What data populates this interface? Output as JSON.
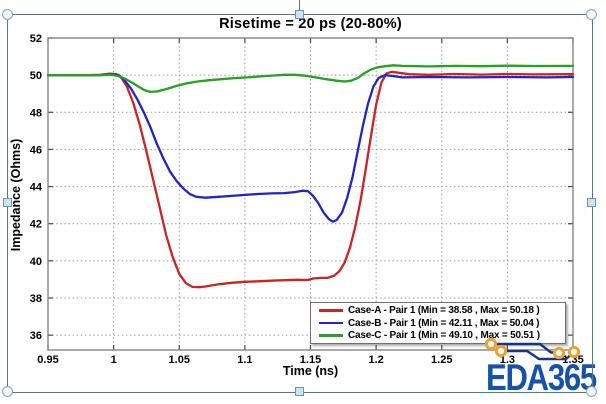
{
  "chart_data": {
    "type": "line",
    "title": "Risetime = 20 ps (20-80%)",
    "xlabel": "Time (ns)",
    "ylabel": "Impedance (Ohms)",
    "xlim": [
      0.95,
      1.35
    ],
    "ylim": [
      35.2,
      52
    ],
    "x_ticks": [
      0.95,
      1.0,
      1.05,
      1.1,
      1.15,
      1.2,
      1.25,
      1.3,
      1.35
    ],
    "x_tick_labels": [
      "0.95",
      "1",
      "1.05",
      "1.1",
      "1.15",
      "1.2",
      "1.25",
      "1.3",
      "1.35"
    ],
    "y_ticks": [
      36,
      38,
      40,
      42,
      44,
      46,
      48,
      50,
      52
    ],
    "y_tick_labels": [
      "36",
      "38",
      "40",
      "42",
      "44",
      "46",
      "48",
      "50",
      "52"
    ],
    "grid": "dotted",
    "legend_position": "inside lower right",
    "series": [
      {
        "name": "Case-A",
        "label": "Case-A - Pair 1 (Min = 38.58 , Max = 50.18 )",
        "color": "#cc2323",
        "min": 38.58,
        "max": 50.18,
        "points": [
          [
            0.95,
            50.0
          ],
          [
            0.96,
            50.0
          ],
          [
            0.97,
            50.0
          ],
          [
            0.98,
            50.0
          ],
          [
            0.99,
            50.02
          ],
          [
            0.997,
            50.08
          ],
          [
            1.002,
            50.05
          ],
          [
            1.006,
            49.85
          ],
          [
            1.01,
            49.4
          ],
          [
            1.015,
            48.5
          ],
          [
            1.02,
            47.3
          ],
          [
            1.025,
            45.9
          ],
          [
            1.03,
            44.4
          ],
          [
            1.035,
            42.9
          ],
          [
            1.04,
            41.4
          ],
          [
            1.045,
            40.2
          ],
          [
            1.05,
            39.3
          ],
          [
            1.055,
            38.8
          ],
          [
            1.06,
            38.6
          ],
          [
            1.065,
            38.58
          ],
          [
            1.07,
            38.62
          ],
          [
            1.075,
            38.68
          ],
          [
            1.08,
            38.74
          ],
          [
            1.09,
            38.82
          ],
          [
            1.1,
            38.87
          ],
          [
            1.11,
            38.9
          ],
          [
            1.12,
            38.93
          ],
          [
            1.13,
            38.96
          ],
          [
            1.14,
            38.98
          ],
          [
            1.148,
            38.97
          ],
          [
            1.152,
            39.05
          ],
          [
            1.158,
            39.08
          ],
          [
            1.163,
            39.08
          ],
          [
            1.168,
            39.2
          ],
          [
            1.172,
            39.45
          ],
          [
            1.176,
            39.9
          ],
          [
            1.18,
            40.7
          ],
          [
            1.184,
            41.8
          ],
          [
            1.188,
            43.2
          ],
          [
            1.192,
            44.9
          ],
          [
            1.196,
            46.7
          ],
          [
            1.2,
            48.4
          ],
          [
            1.204,
            49.6
          ],
          [
            1.208,
            50.1
          ],
          [
            1.212,
            50.18
          ],
          [
            1.218,
            50.12
          ],
          [
            1.225,
            50.05
          ],
          [
            1.24,
            50.02
          ],
          [
            1.26,
            50.06
          ],
          [
            1.28,
            50.03
          ],
          [
            1.3,
            50.06
          ],
          [
            1.32,
            50.04
          ],
          [
            1.35,
            50.05
          ]
        ]
      },
      {
        "name": "Case-B",
        "label": "Case-B - Pair 1 (Min = 42.11 , Max = 50.04 )",
        "color": "#2323cc",
        "min": 42.11,
        "max": 50.04,
        "points": [
          [
            0.95,
            50.0
          ],
          [
            0.97,
            50.0
          ],
          [
            0.99,
            50.0
          ],
          [
            0.998,
            50.04
          ],
          [
            1.004,
            50.0
          ],
          [
            1.008,
            49.75
          ],
          [
            1.013,
            49.3
          ],
          [
            1.018,
            48.7
          ],
          [
            1.023,
            48.0
          ],
          [
            1.028,
            47.2
          ],
          [
            1.033,
            46.3
          ],
          [
            1.038,
            45.5
          ],
          [
            1.043,
            44.8
          ],
          [
            1.048,
            44.3
          ],
          [
            1.053,
            43.9
          ],
          [
            1.058,
            43.6
          ],
          [
            1.063,
            43.45
          ],
          [
            1.07,
            43.4
          ],
          [
            1.08,
            43.45
          ],
          [
            1.09,
            43.5
          ],
          [
            1.1,
            43.55
          ],
          [
            1.11,
            43.6
          ],
          [
            1.12,
            43.63
          ],
          [
            1.13,
            43.65
          ],
          [
            1.138,
            43.7
          ],
          [
            1.144,
            43.78
          ],
          [
            1.148,
            43.75
          ],
          [
            1.152,
            43.5
          ],
          [
            1.156,
            43.1
          ],
          [
            1.16,
            42.6
          ],
          [
            1.164,
            42.25
          ],
          [
            1.167,
            42.11
          ],
          [
            1.17,
            42.2
          ],
          [
            1.174,
            42.6
          ],
          [
            1.178,
            43.4
          ],
          [
            1.182,
            44.5
          ],
          [
            1.186,
            45.9
          ],
          [
            1.19,
            47.3
          ],
          [
            1.194,
            48.5
          ],
          [
            1.198,
            49.4
          ],
          [
            1.202,
            49.85
          ],
          [
            1.207,
            50.0
          ],
          [
            1.213,
            49.95
          ],
          [
            1.22,
            49.88
          ],
          [
            1.24,
            49.9
          ],
          [
            1.27,
            49.88
          ],
          [
            1.3,
            49.9
          ],
          [
            1.33,
            49.88
          ],
          [
            1.35,
            49.9
          ]
        ]
      },
      {
        "name": "Case-C",
        "label": "Case-C - Pair 1 (Min = 49.10 , Max = 50.51 )",
        "color": "#23a223",
        "min": 49.1,
        "max": 50.51,
        "points": [
          [
            0.95,
            50.0
          ],
          [
            0.97,
            50.0
          ],
          [
            0.99,
            50.0
          ],
          [
            0.998,
            50.02
          ],
          [
            1.004,
            49.95
          ],
          [
            1.009,
            49.8
          ],
          [
            1.014,
            49.6
          ],
          [
            1.019,
            49.38
          ],
          [
            1.024,
            49.18
          ],
          [
            1.028,
            49.1
          ],
          [
            1.033,
            49.12
          ],
          [
            1.04,
            49.25
          ],
          [
            1.048,
            49.42
          ],
          [
            1.056,
            49.56
          ],
          [
            1.064,
            49.66
          ],
          [
            1.072,
            49.72
          ],
          [
            1.082,
            49.78
          ],
          [
            1.092,
            49.84
          ],
          [
            1.102,
            49.88
          ],
          [
            1.112,
            49.93
          ],
          [
            1.122,
            49.98
          ],
          [
            1.13,
            50.02
          ],
          [
            1.138,
            50.02
          ],
          [
            1.146,
            49.97
          ],
          [
            1.154,
            49.88
          ],
          [
            1.162,
            49.78
          ],
          [
            1.17,
            49.7
          ],
          [
            1.176,
            49.66
          ],
          [
            1.181,
            49.7
          ],
          [
            1.186,
            49.85
          ],
          [
            1.191,
            50.1
          ],
          [
            1.196,
            50.3
          ],
          [
            1.201,
            50.42
          ],
          [
            1.207,
            50.48
          ],
          [
            1.213,
            50.53
          ],
          [
            1.22,
            50.5
          ],
          [
            1.24,
            50.47
          ],
          [
            1.26,
            50.5
          ],
          [
            1.28,
            50.48
          ],
          [
            1.3,
            50.51
          ],
          [
            1.32,
            50.49
          ],
          [
            1.35,
            50.5
          ]
        ]
      }
    ]
  },
  "logo": {
    "text": "EDA365",
    "text_color": "#1553a8",
    "trace_color": "#16368c",
    "via_color": "#f0a032"
  },
  "style_colors": {
    "grid": "#9a9a9a",
    "plot_border": "#7d7d7d",
    "tick": "#444444",
    "selection_frame": "#4a7a96"
  }
}
